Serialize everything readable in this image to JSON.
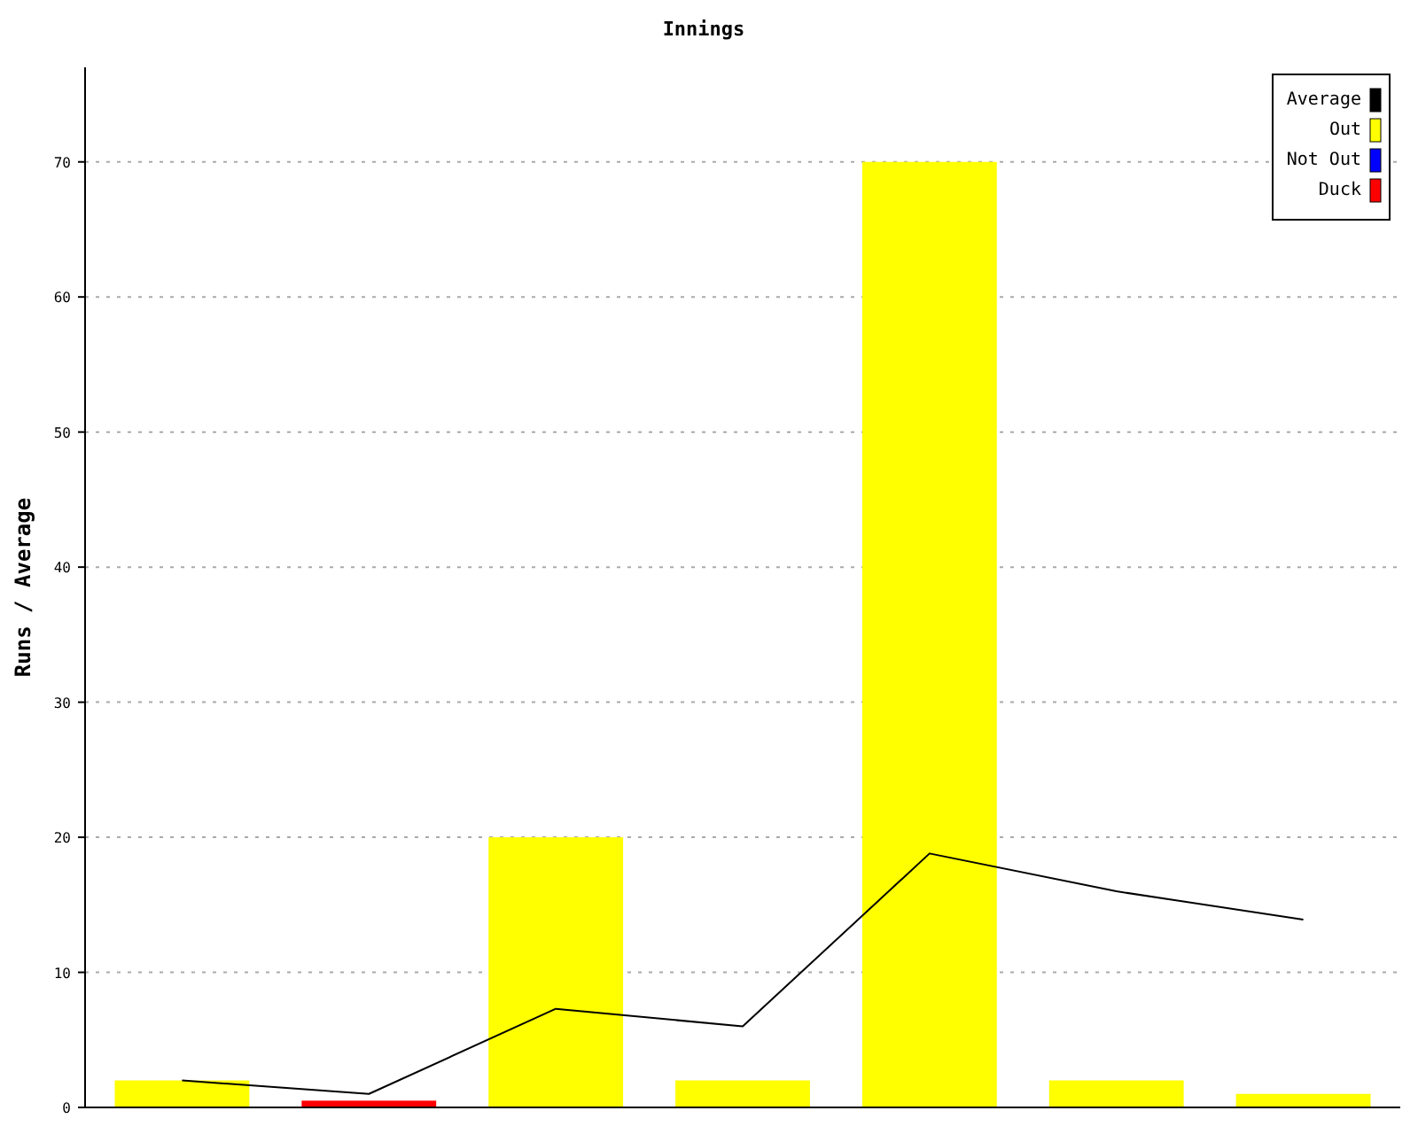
{
  "chart_data": {
    "type": "bar",
    "title": "Innings",
    "ylabel": "Runs / Average",
    "categories": [
      null,
      null,
      null,
      null,
      null,
      null,
      null
    ],
    "ylim": [
      0,
      77
    ],
    "yticks": [
      0,
      10,
      20,
      30,
      40,
      50,
      60,
      70
    ],
    "grid": "y",
    "legend": "top right",
    "series": [
      {
        "name": "Average",
        "type": "line",
        "color": "#000000",
        "values": [
          2,
          1,
          7.3,
          6,
          18.8,
          16,
          13.9
        ]
      },
      {
        "name": "Out",
        "color": "#ffff00",
        "values": [
          2,
          null,
          20,
          2,
          70,
          2,
          1
        ]
      },
      {
        "name": "Not Out",
        "color": "#0000ff",
        "values": [
          null,
          null,
          null,
          null,
          null,
          null,
          null
        ]
      },
      {
        "name": "Duck",
        "color": "#ff0000",
        "values": [
          null,
          0.5,
          null,
          null,
          null,
          null,
          null
        ]
      }
    ]
  }
}
